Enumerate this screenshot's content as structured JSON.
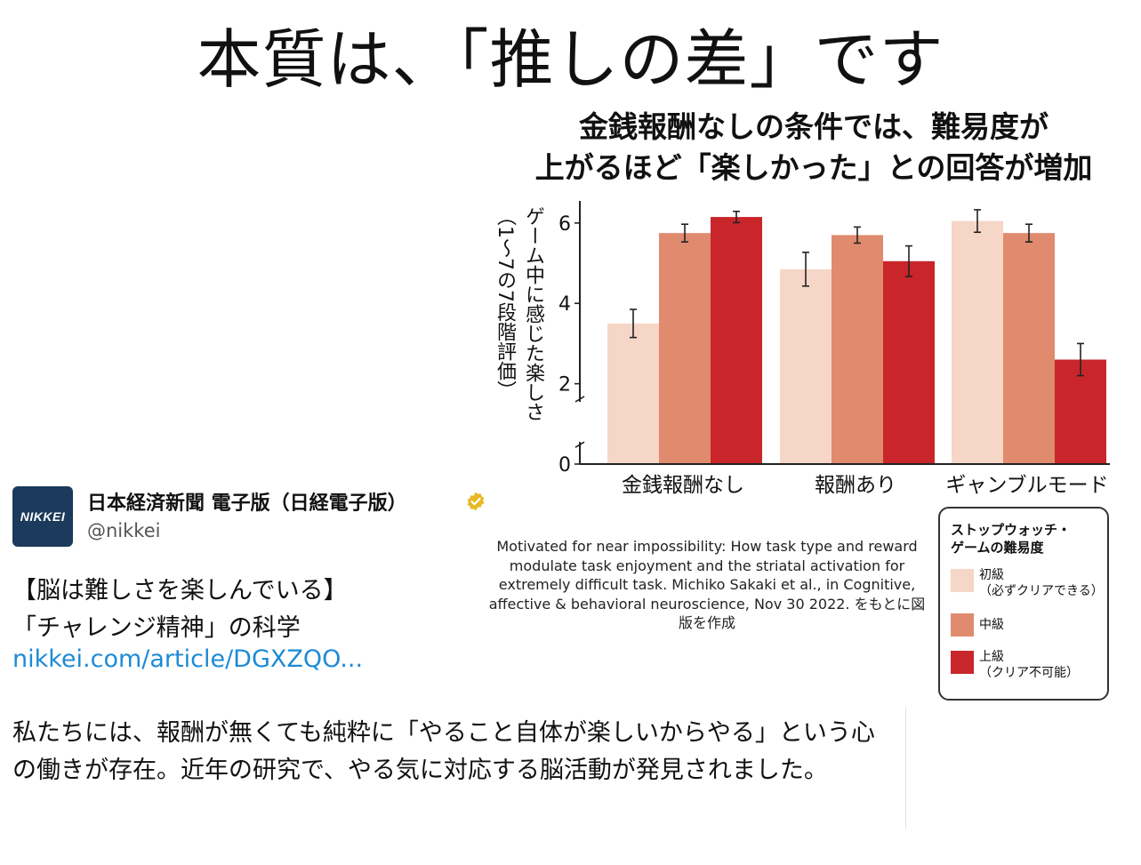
{
  "slide_title": "本質は、「推しの差」です",
  "chart_data": {
    "type": "bar",
    "title_lines": [
      "金銭報酬なしの条件では、難易度が",
      "上がるほど「楽しかった」との回答が増加"
    ],
    "ylabel_lines": [
      "ゲーム中に感じた楽しさ",
      "（1〜7の7段階評価）"
    ],
    "categories": [
      "金銭報酬なし",
      "報酬あり",
      "ギャンブルモード"
    ],
    "series": [
      {
        "name": "初級（必ずクリアできる）",
        "values": [
          3.5,
          4.85,
          6.05
        ],
        "errors": [
          0.35,
          0.42,
          0.28
        ],
        "color": "#f6d6c7"
      },
      {
        "name": "中級",
        "values": [
          5.75,
          5.7,
          5.75
        ],
        "errors": [
          0.22,
          0.2,
          0.22
        ],
        "color": "#e08a6e"
      },
      {
        "name": "上級（クリア不可能）",
        "values": [
          6.15,
          5.05,
          2.6
        ],
        "errors": [
          0.14,
          0.38,
          0.4
        ],
        "color": "#c8262a"
      }
    ],
    "yticks": [
      "0",
      "2",
      "4",
      "6"
    ],
    "ytick_values": [
      0,
      2,
      4,
      6
    ],
    "ylim": [
      0,
      6.55
    ],
    "axis_break": true,
    "grid": false,
    "legend_position": "bottom-right",
    "legend": {
      "title_lines": [
        "ストップウォッチ・",
        "ゲームの難易度"
      ],
      "items": [
        {
          "label_lines": [
            "初級",
            "（必ずクリアできる）"
          ],
          "color": "#f6d6c7"
        },
        {
          "label_lines": [
            "中級"
          ],
          "color": "#e08a6e"
        },
        {
          "label_lines": [
            "上級",
            "（クリア不可能）"
          ],
          "color": "#c8262a"
        }
      ]
    }
  },
  "citation": "Motivated for near impossibility: How task type and reward modulate task enjoyment and the striatal activation for extremely difficult task. Michiko Sakaki et al., in Cognitive, affective & behavioral neuroscience, Nov 30 2022. をもとに図版を作成",
  "tweet": {
    "avatar_text": "NIKKEI",
    "avatar_color": "#1b3a5c",
    "account_name": "日本経済新聞 電子版（日経電子版）",
    "handle": "@nikkei",
    "verified_icon": "verified-badge-icon",
    "line1": "【脳は難しさを楽しんでいる】",
    "line2": "「チャレンジ精神」の科学",
    "link": "nikkei.com/article/DGXZQO...",
    "link_color": "#1d8ad6",
    "body": "私たちには、報酬が無くても純粋に「やること自体が楽しいからやる」という心の働きが存在。近年の研究で、やる気に対応する脳活動が発見されました。"
  }
}
